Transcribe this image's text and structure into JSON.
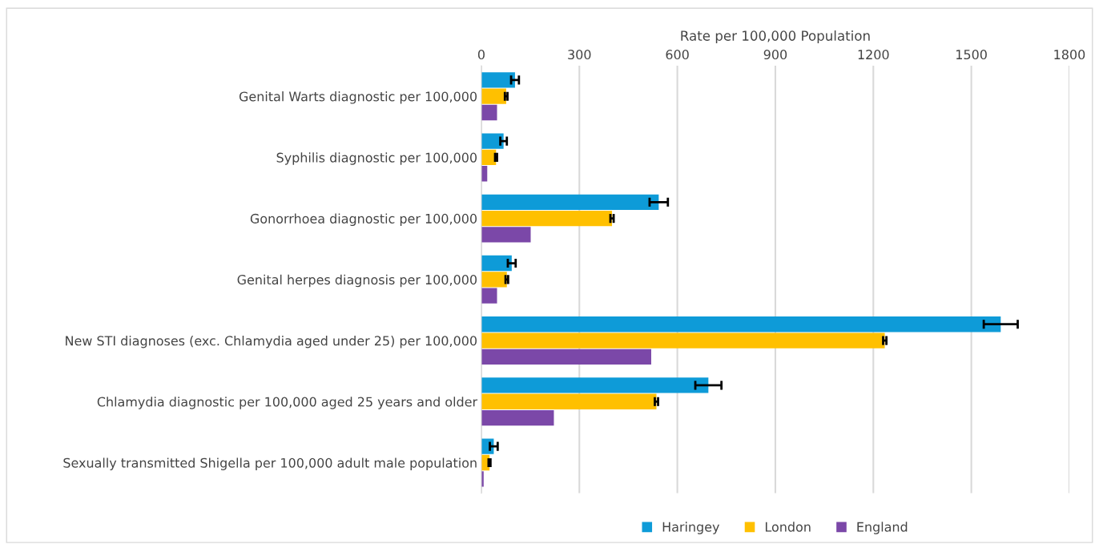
{
  "chart_data": {
    "type": "bar",
    "orientation": "horizontal",
    "xlabel": "Rate per 100,000 Population",
    "categories": [
      "Genital Warts diagnostic per 100,000",
      "Syphilis diagnostic per 100,000",
      "Gonorrhoea diagnostic per 100,000",
      "Genital herpes diagnosis per 100,000",
      "New STI diagnoses (exc. Chlamydia aged under 25) per 100,000",
      "Chlamydia diagnostic per 100,000 aged 25 years and older",
      "Sexually transmitted Shigella per 100,000 adult male population"
    ],
    "series": [
      {
        "name": "Haringey",
        "color": "#0e9bd8",
        "values": [
          103,
          68,
          543,
          93,
          1590,
          695,
          38
        ],
        "errors": [
          12,
          10,
          28,
          12,
          52,
          40,
          12
        ]
      },
      {
        "name": "London",
        "color": "#ffc000",
        "values": [
          76,
          45,
          400,
          78,
          1235,
          536,
          25
        ],
        "errors": [
          4,
          3,
          5,
          4,
          5,
          5,
          3
        ]
      },
      {
        "name": "England",
        "color": "#7b48a8",
        "values": [
          48,
          18,
          151,
          48,
          520,
          222,
          7
        ]
      }
    ],
    "xlim": [
      0,
      1800
    ],
    "xticks": [
      0,
      300,
      600,
      900,
      1200,
      1500,
      1800
    ],
    "grid": "x",
    "legend": "bottom"
  }
}
